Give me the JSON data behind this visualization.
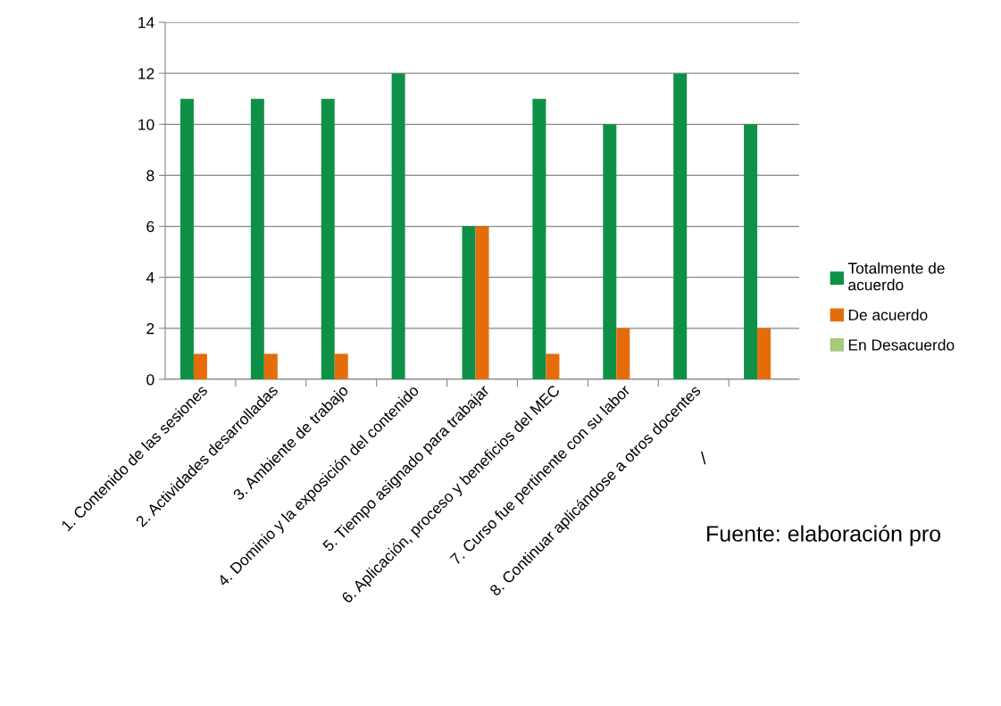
{
  "chart_data": {
    "type": "bar",
    "categories": [
      "1. Contenido de las sesiones",
      "2. Actividades desarrolladas",
      "3. Ambiente de trabajo",
      "4. Dominio y la exposición del contenido",
      "5. Tiempo asignado para trabajar",
      "6. Aplicación, proceso y beneficios del MEC",
      "7. Curso fue pertinente con su labor",
      "8. Continuar aplicándose a otros docentes",
      null
    ],
    "series": [
      {
        "name": "Totalmente de acuerdo",
        "color": "#0e9147",
        "values": [
          11,
          11,
          11,
          12,
          6,
          11,
          10,
          12,
          10
        ]
      },
      {
        "name": "De acuerdo",
        "color": "#e46c0a",
        "values": [
          1,
          1,
          1,
          null,
          6,
          1,
          2,
          null,
          2
        ]
      },
      {
        "name": "En Desacuerdo",
        "color": "#a6c97e",
        "values": [
          null,
          null,
          null,
          null,
          null,
          null,
          null,
          null,
          null
        ]
      }
    ],
    "ylim": [
      0,
      14
    ],
    "yticks": [
      0,
      2,
      4,
      6,
      8,
      10,
      12,
      14
    ],
    "grid": "y",
    "legend": "right",
    "annotations": [
      "\\",
      "Fuente: elaboración pro"
    ]
  }
}
